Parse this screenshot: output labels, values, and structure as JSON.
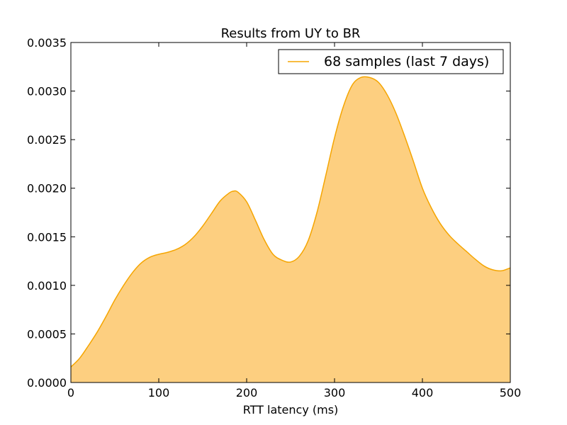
{
  "chart_data": {
    "type": "area",
    "title": "Results from UY to BR",
    "xlabel": "RTT latency (ms)",
    "ylabel": "",
    "xlim": [
      0,
      500
    ],
    "ylim": [
      0,
      0.0035
    ],
    "x_ticks": [
      "0",
      "100",
      "200",
      "300",
      "400",
      "500"
    ],
    "y_ticks": [
      "0.0000",
      "0.0005",
      "0.0010",
      "0.0015",
      "0.0020",
      "0.0025",
      "0.0030",
      "0.0035"
    ],
    "grid": false,
    "legend_position": "top-right",
    "series": [
      {
        "name": "68 samples (last 7 days)",
        "line_color": "#f5a500",
        "fill_color": "#fdcf80",
        "x": [
          0,
          10,
          20,
          30,
          40,
          50,
          60,
          70,
          80,
          90,
          100,
          110,
          120,
          130,
          140,
          150,
          160,
          170,
          180,
          185,
          190,
          200,
          210,
          220,
          230,
          240,
          250,
          260,
          270,
          280,
          290,
          300,
          310,
          320,
          330,
          340,
          350,
          360,
          370,
          380,
          390,
          400,
          410,
          420,
          430,
          440,
          450,
          460,
          470,
          480,
          490,
          500
        ],
        "y": [
          0.00016,
          0.00025,
          0.00038,
          0.00052,
          0.00068,
          0.00085,
          0.001,
          0.00113,
          0.00123,
          0.00129,
          0.00132,
          0.00134,
          0.00137,
          0.00142,
          0.0015,
          0.00161,
          0.00174,
          0.00187,
          0.00195,
          0.00197,
          0.00196,
          0.00186,
          0.00167,
          0.00147,
          0.00132,
          0.00126,
          0.00124,
          0.0013,
          0.00146,
          0.00175,
          0.00213,
          0.00252,
          0.00284,
          0.00306,
          0.00314,
          0.00314,
          0.00309,
          0.00296,
          0.00277,
          0.00253,
          0.00227,
          0.002,
          0.0018,
          0.00164,
          0.00152,
          0.00143,
          0.00135,
          0.00127,
          0.0012,
          0.00116,
          0.00115,
          0.00118
        ]
      }
    ]
  }
}
